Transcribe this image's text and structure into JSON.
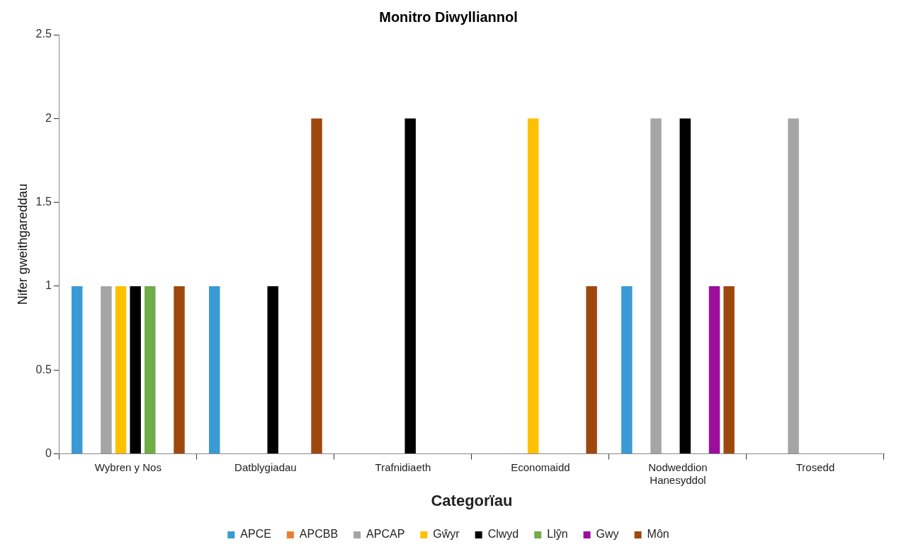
{
  "chart_data": {
    "type": "bar",
    "title": "Monitro Diwylliannol",
    "xlabel": "Categorïau",
    "ylabel": "Nifer gweithgareddau",
    "categories": [
      "Wybren y Nos",
      "Datblygiadau",
      "Trafnidiaeth",
      "Economaidd",
      "Nodweddion Hanesyddol",
      "Trosedd"
    ],
    "series": [
      {
        "name": "APCE",
        "color": "#3a9ad6",
        "values": [
          1,
          1,
          0,
          0,
          1,
          0
        ]
      },
      {
        "name": "APCBB",
        "color": "#ed7d31",
        "values": [
          0,
          0,
          0,
          0,
          0,
          0
        ]
      },
      {
        "name": "APCAP",
        "color": "#a5a5a5",
        "values": [
          1,
          0,
          0,
          0,
          2,
          2
        ]
      },
      {
        "name": "Gŵyr",
        "color": "#ffc000",
        "values": [
          1,
          0,
          0,
          2,
          0,
          0
        ]
      },
      {
        "name": "Clwyd",
        "color": "#000000",
        "values": [
          1,
          1,
          2,
          0,
          2,
          0
        ]
      },
      {
        "name": "Llŷn",
        "color": "#70ad47",
        "values": [
          1,
          0,
          0,
          0,
          0,
          0
        ]
      },
      {
        "name": "Gwy",
        "color": "#9c0e9c",
        "values": [
          0,
          0,
          0,
          0,
          1,
          0
        ]
      },
      {
        "name": "Môn",
        "color": "#9e480e",
        "values": [
          1,
          2,
          0,
          1,
          1,
          0
        ]
      }
    ],
    "ylim": [
      0,
      2.5
    ],
    "yticks": [
      0,
      0.5,
      1,
      1.5,
      2,
      2.5
    ],
    "grid": false,
    "legend": "bottom"
  }
}
